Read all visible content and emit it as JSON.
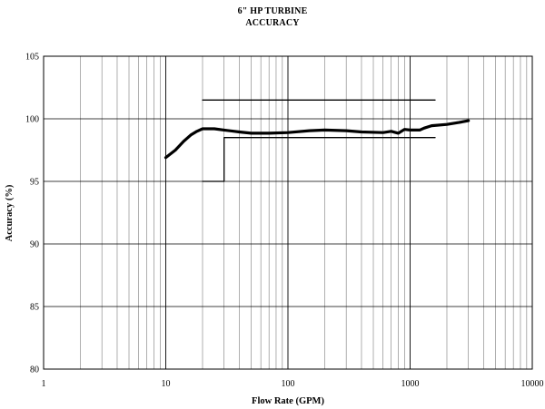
{
  "chart_data": {
    "type": "line",
    "title": "6\" HP TURBINE",
    "subtitle": "ACCURACY",
    "xlabel": "Flow Rate (GPM)",
    "ylabel": "Accuracy (%)",
    "xscale": "log",
    "xlim": [
      1,
      10000
    ],
    "ylim": [
      80,
      105
    ],
    "x_ticks": [
      "1",
      "10",
      "100",
      "1000",
      "10000"
    ],
    "y_ticks": [
      "80",
      "85",
      "90",
      "95",
      "100",
      "105"
    ],
    "grid": true,
    "legend": "none",
    "series": [
      {
        "role": "measured",
        "color": "#000000",
        "x": [
          10,
          12,
          14,
          16,
          18,
          20,
          25,
          30,
          40,
          50,
          70,
          100,
          150,
          200,
          300,
          400,
          600,
          700,
          800,
          900,
          1000,
          1200,
          1300,
          1500,
          2000,
          2500,
          3000
        ],
        "y": [
          96.9,
          97.5,
          98.2,
          98.7,
          99.0,
          99.2,
          99.2,
          99.1,
          98.95,
          98.85,
          98.85,
          98.9,
          99.05,
          99.1,
          99.05,
          98.95,
          98.9,
          99.0,
          98.85,
          99.15,
          99.1,
          99.1,
          99.25,
          99.45,
          99.55,
          99.7,
          99.85
        ]
      },
      {
        "role": "upper-limit",
        "color": "#000000",
        "x": [
          20,
          1600
        ],
        "y": [
          101.5,
          101.5
        ]
      },
      {
        "role": "lower-limit",
        "color": "#000000",
        "x": [
          20,
          30,
          30,
          1600
        ],
        "y": [
          95.0,
          95.0,
          98.5,
          98.5
        ]
      }
    ]
  }
}
